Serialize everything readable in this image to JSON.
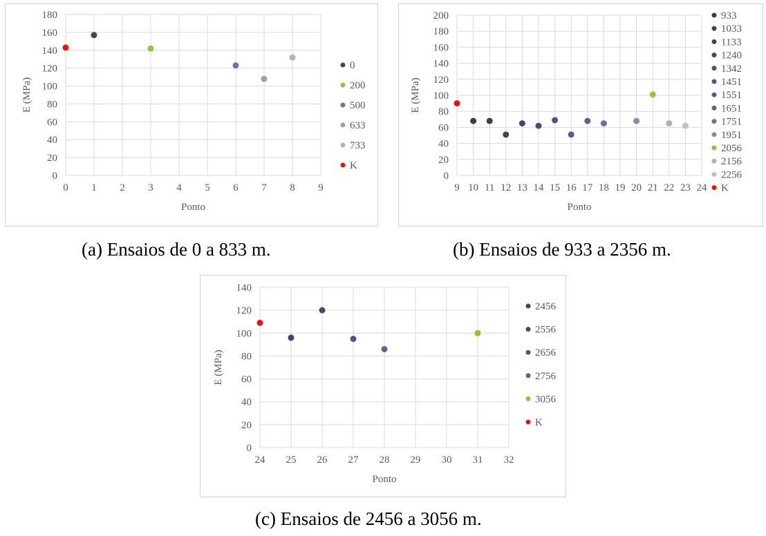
{
  "captions": {
    "a": "(a) Ensaios de 0 a 833 m.",
    "b": "(b) Ensaios de 933 a 2356 m.",
    "c": "(c) Ensaios de 2456 a 3056 m."
  },
  "chart_data": [
    {
      "type": "scatter",
      "xlabel": "Ponto",
      "ylabel": "E (MPa)",
      "xlim": [
        0,
        9
      ],
      "ylim": [
        0,
        180
      ],
      "x_ticks": [
        0,
        1,
        2,
        3,
        4,
        5,
        6,
        7,
        8,
        9
      ],
      "y_ticks": [
        0,
        20,
        40,
        60,
        80,
        100,
        120,
        140,
        160,
        180
      ],
      "grid": true,
      "legend_position": "right",
      "series": [
        {
          "name": "0",
          "color": "#4a3f63",
          "points": [
            [
              1,
              157
            ]
          ]
        },
        {
          "name": "200",
          "color": "#8cc63f",
          "points": [
            [
              3,
              142
            ]
          ]
        },
        {
          "name": "500",
          "color": "#7d6c9e",
          "points": [
            [
              6,
              123
            ]
          ]
        },
        {
          "name": "633",
          "color": "#a597bf",
          "points": [
            [
              7,
              108
            ]
          ]
        },
        {
          "name": "733",
          "color": "#b7adcc",
          "points": [
            [
              8,
              132
            ]
          ]
        },
        {
          "name": "K",
          "color": "#ee1111",
          "points": [
            [
              0,
              143
            ]
          ]
        }
      ]
    },
    {
      "type": "scatter",
      "xlabel": "Ponto",
      "ylabel": "E (MPa)",
      "xlim": [
        9,
        24
      ],
      "ylim": [
        0,
        200
      ],
      "x_ticks": [
        9,
        10,
        11,
        12,
        13,
        14,
        15,
        16,
        17,
        18,
        19,
        20,
        21,
        22,
        23,
        24
      ],
      "y_ticks": [
        0,
        20,
        40,
        60,
        80,
        100,
        120,
        140,
        160,
        180,
        200
      ],
      "grid": true,
      "legend_position": "right",
      "series": [
        {
          "name": "933",
          "color": "#3f3656",
          "points": [
            [
              10,
              68
            ]
          ]
        },
        {
          "name": "1033",
          "color": "#43395c",
          "points": [
            [
              11,
              68
            ]
          ]
        },
        {
          "name": "1133",
          "color": "#483d62",
          "points": [
            [
              12,
              51
            ]
          ]
        },
        {
          "name": "1240",
          "color": "#4e4269",
          "points": [
            [
              13,
              65
            ]
          ]
        },
        {
          "name": "1342",
          "color": "#554871",
          "points": [
            [
              14,
              62
            ]
          ]
        },
        {
          "name": "1451",
          "color": "#5c4e79",
          "points": [
            [
              15,
              69
            ]
          ]
        },
        {
          "name": "1551",
          "color": "#635481",
          "points": [
            [
              16,
              51
            ]
          ]
        },
        {
          "name": "1651",
          "color": "#6b5b89",
          "points": [
            [
              17,
              68
            ]
          ]
        },
        {
          "name": "1751",
          "color": "#7a6996",
          "points": [
            [
              18,
              65
            ]
          ]
        },
        {
          "name": "1951",
          "color": "#9385ad",
          "points": [
            [
              20,
              68
            ]
          ]
        },
        {
          "name": "2056",
          "color": "#8cc63f",
          "points": [
            [
              21,
              101
            ]
          ]
        },
        {
          "name": "2156",
          "color": "#b3a9c9",
          "points": [
            [
              22,
              65
            ]
          ]
        },
        {
          "name": "2256",
          "color": "#c3bbd5",
          "points": [
            [
              23,
              62
            ]
          ]
        },
        {
          "name": "K",
          "color": "#ee1111",
          "points": [
            [
              9,
              90
            ]
          ]
        }
      ]
    },
    {
      "type": "scatter",
      "xlabel": "Ponto",
      "ylabel": "E (MPa)",
      "xlim": [
        24,
        32
      ],
      "ylim": [
        0,
        140
      ],
      "x_ticks": [
        24,
        25,
        26,
        27,
        28,
        29,
        30,
        31,
        32
      ],
      "y_ticks": [
        0,
        20,
        40,
        60,
        80,
        100,
        120,
        140
      ],
      "grid": true,
      "legend_position": "right",
      "series": [
        {
          "name": "2456",
          "color": "#4a3f63",
          "points": [
            [
              25,
              96
            ]
          ]
        },
        {
          "name": "2556",
          "color": "#51456c",
          "points": [
            [
              26,
              120
            ]
          ]
        },
        {
          "name": "2656",
          "color": "#5e4f7c",
          "points": [
            [
              27,
              95
            ]
          ]
        },
        {
          "name": "2756",
          "color": "#6b5b8a",
          "points": [
            [
              28,
              86
            ]
          ]
        },
        {
          "name": "3056",
          "color": "#8cc63f",
          "points": [
            [
              31,
              100
            ]
          ]
        },
        {
          "name": "K",
          "color": "#ee1111",
          "points": [
            [
              24,
              109
            ]
          ]
        }
      ]
    }
  ]
}
